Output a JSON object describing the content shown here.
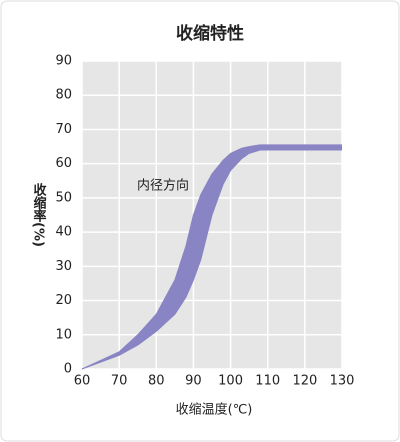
{
  "chart_data": {
    "type": "band",
    "title": "收缩特性",
    "x_label": "收缩温度(℃)",
    "y_label": "收缩率(%)",
    "annotation": "内径方向",
    "x": [
      60,
      65,
      70,
      75,
      80,
      85,
      88,
      90,
      92,
      95,
      98,
      100,
      103,
      105,
      108,
      110,
      115,
      120,
      125,
      130
    ],
    "series": [
      {
        "color": "#8984c4",
        "values": [
          0,
          2.5,
          5,
          10,
          16,
          26,
          36,
          45,
          51,
          57,
          61,
          63,
          64.5,
          65,
          65.5,
          65.5,
          65.5,
          65.5,
          65.5,
          65.5
        ]
      },
      {
        "color": "#8984c4",
        "values": [
          0,
          2,
          4,
          7,
          11,
          16,
          21,
          26,
          32,
          45,
          54,
          58,
          61.5,
          63,
          64,
          64,
          64,
          64,
          64,
          64
        ]
      }
    ],
    "xlim": [
      60,
      130
    ],
    "xticks": [
      60,
      70,
      80,
      90,
      100,
      110,
      120,
      130
    ],
    "ylim": [
      0,
      90
    ],
    "yticks": [
      0,
      10,
      20,
      30,
      40,
      50,
      60,
      70,
      80,
      90
    ],
    "grid": true
  }
}
